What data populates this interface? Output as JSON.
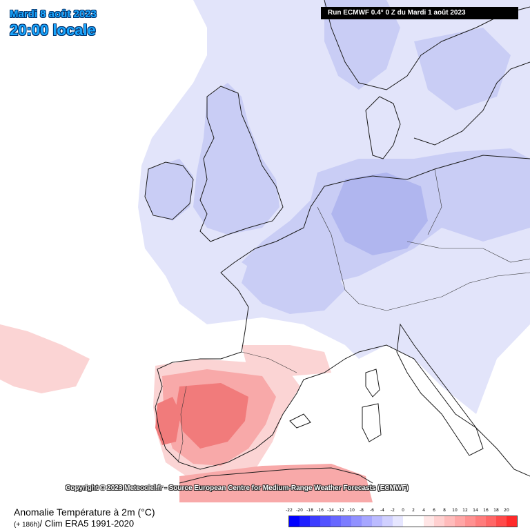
{
  "header": {
    "date_title": "Mardi 8 août 2023",
    "time_title": "20:00 locale",
    "run_banner": "Run ECMWF 0.4° 0 Z du Mardi 1 août 2023"
  },
  "map": {
    "copyright": "Copyright © 2023 Meteociel.fr - Source European Centre for Medium-Range Weather Forecasts (ECMWF)",
    "colors": {
      "land_outline": "#1a1a1a",
      "blue_light": "#e2e4fa",
      "blue_mid": "#c9cdf5",
      "blue_dark": "#b0b6ef",
      "red_light": "#fbd4d4",
      "red_mid": "#f8a9a9",
      "red_dark": "#f17b7b"
    }
  },
  "legend": {
    "title": "Anomalie Température à 2m (°C)",
    "lead": "(+ 186h)",
    "clim": "/ Clim ERA5 1991-2020",
    "ticks": [
      "-22",
      "-20",
      "-18",
      "-16",
      "-14",
      "-12",
      "-10",
      "-8",
      "-6",
      "-4",
      "-2",
      "0",
      "2",
      "4",
      "6",
      "8",
      "10",
      "12",
      "14",
      "16",
      "18",
      "20"
    ],
    "swatch_colors": [
      "#0000ff",
      "#1f1fff",
      "#3d3dff",
      "#5252ff",
      "#6767ff",
      "#7c7cff",
      "#9191ff",
      "#a6a6ff",
      "#bbbbff",
      "#d0d0ff",
      "#e6e6ff",
      "#ffffff",
      "#ffffff",
      "#ffe6e6",
      "#ffd0d0",
      "#ffbbbb",
      "#ffa6a6",
      "#ff9191",
      "#ff7c7c",
      "#ff6767",
      "#ff4a4a",
      "#ff2a2a"
    ]
  }
}
